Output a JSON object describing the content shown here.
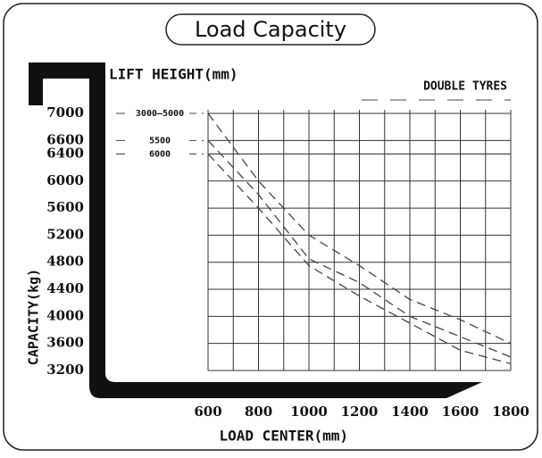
{
  "chart_data": {
    "type": "line",
    "title": "Load Capacity",
    "legend_title": "LIFT HEIGHT(mm)",
    "annotation": "DOUBLE TYRES",
    "x_label": "LOAD CENTER(mm)",
    "y_label": "CAPACITY(kg)",
    "x": [
      600,
      800,
      1000,
      1200,
      1400,
      1600,
      1800
    ],
    "series": [
      {
        "name": "3000—5000",
        "color": "#444",
        "values": [
          7000,
          6000,
          5200,
          4750,
          4250,
          3950,
          3600
        ]
      },
      {
        "name": "5500",
        "color": "#444",
        "values": [
          6600,
          5800,
          4850,
          4500,
          4000,
          3700,
          3400
        ]
      },
      {
        "name": "6000",
        "color": "#444",
        "values": [
          6400,
          5600,
          4750,
          4300,
          3900,
          3500,
          3300
        ]
      }
    ],
    "xlim": [
      600,
      1800
    ],
    "xticks": [
      600,
      800,
      1000,
      1200,
      1400,
      1600,
      1800
    ],
    "ylim": [
      3200,
      7000
    ],
    "yticks": [
      3200,
      3600,
      4000,
      4400,
      4800,
      5200,
      5600,
      6000,
      6400,
      6600,
      7000
    ],
    "grid": true
  }
}
